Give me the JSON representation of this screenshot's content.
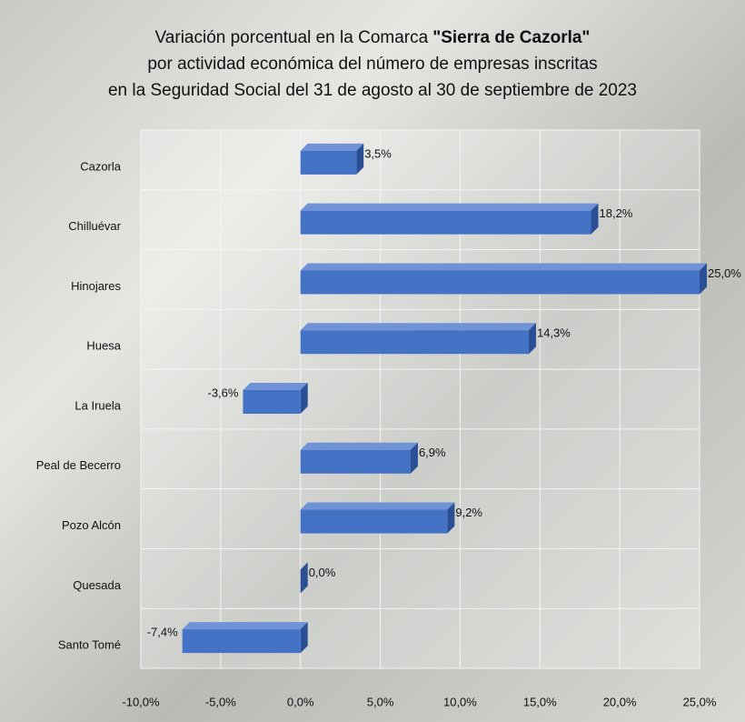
{
  "chart_data": {
    "type": "hbar",
    "title": {
      "line1": "Variación porcentual en la Comarca",
      "line1_bold": "\"Sierra de Cazorla\"",
      "line2": "por actividad económica del número de empresas inscritas",
      "line3": "en la Seguridad Social del 31 de agosto al 30 de septiembre de 2023"
    },
    "categories": [
      "Cazorla",
      "Chilluévar",
      "Hinojares",
      "Huesa",
      "La Iruela",
      "Peal de Becerro",
      "Pozo Alcón",
      "Quesada",
      "Santo Tomé"
    ],
    "values": [
      3.5,
      18.2,
      25.0,
      14.3,
      -3.6,
      6.9,
      9.2,
      0.0,
      -7.4
    ],
    "value_labels": [
      "3,5%",
      "18,2%",
      "25,0%",
      "14,3%",
      "-3,6%",
      "6,9%",
      "9,2%",
      "0,0%",
      "-7,4%"
    ],
    "color": "#4472c4",
    "xlim": [
      -10,
      25
    ],
    "xticks": [
      {
        "value": -10,
        "label": "-10,0%"
      },
      {
        "value": -5,
        "label": "-5,0%"
      },
      {
        "value": 0,
        "label": "0,0%"
      },
      {
        "value": 5,
        "label": "5,0%"
      },
      {
        "value": 10,
        "label": "10,0%"
      },
      {
        "value": 15,
        "label": "15,0%"
      },
      {
        "value": 20,
        "label": "20,0%"
      },
      {
        "value": 25,
        "label": "25,0%"
      }
    ],
    "grid": true
  }
}
